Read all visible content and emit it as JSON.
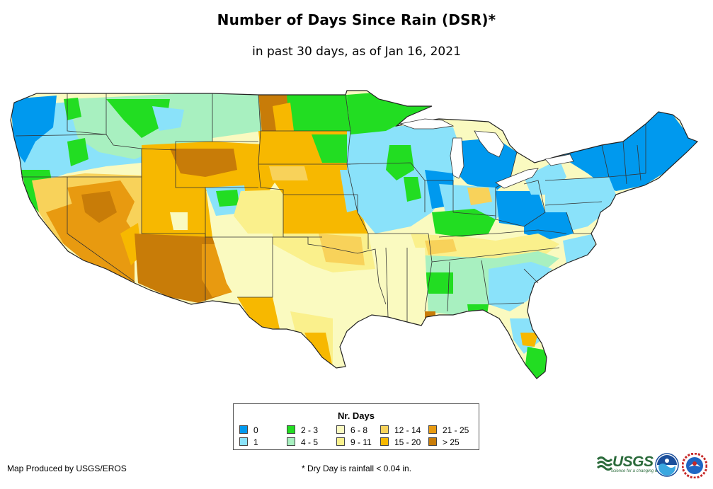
{
  "title": "Number of Days Since Rain (DSR)*",
  "subtitle": "in past 30 days, as of Jan 16, 2021",
  "legend": {
    "title": "Nr. Days",
    "items": [
      {
        "label": "0",
        "color": "#0099ee"
      },
      {
        "label": "1",
        "color": "#8ae2fa"
      },
      {
        "label": "2 - 3",
        "color": "#22dd22"
      },
      {
        "label": "4 - 5",
        "color": "#a8f0c0"
      },
      {
        "label": "6 - 8",
        "color": "#fafac0"
      },
      {
        "label": "9 - 11",
        "color": "#faf08c"
      },
      {
        "label": "12 - 14",
        "color": "#f8d25a"
      },
      {
        "label": "15 - 20",
        "color": "#f7b800"
      },
      {
        "label": "21 - 25",
        "color": "#e89a10"
      },
      {
        "label": "> 25",
        "color": "#c87c08"
      }
    ]
  },
  "credit": "Map Produced by USGS/EROS",
  "footnote": "* Dry Day is rainfall < 0.04 in.",
  "logos": {
    "usgs": "USGS",
    "usgs_tagline": "science for a changing world",
    "noaa": "NOAA",
    "nws": "NWS"
  },
  "icons": [
    "usgs-logo",
    "noaa-logo",
    "nws-logo"
  ]
}
